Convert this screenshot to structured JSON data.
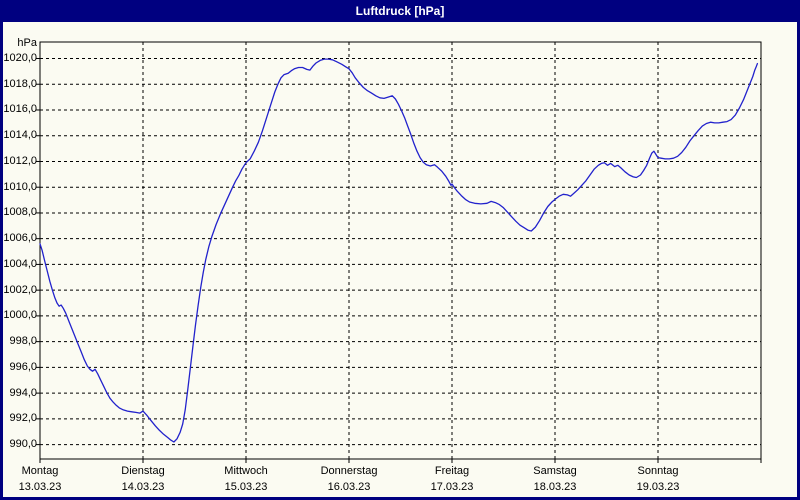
{
  "window": {
    "title": "Luftdruck [hPa]"
  },
  "colors": {
    "titlebar": "#000080",
    "title_text": "#ffffff",
    "window_border": "#000080",
    "background": "#fbfbf2",
    "axis": "#000000",
    "grid": "#000000",
    "line": "#2222cc"
  },
  "chart_data": {
    "type": "line",
    "title": "Luftdruck [hPa]",
    "xlabel": "",
    "ylabel": "hPa",
    "unit": "hPa",
    "grid": "dashed",
    "legend": "none",
    "ylim": [
      988.9,
      1021.3
    ],
    "xlim_days": [
      0,
      7
    ],
    "y_ticks": [
      990,
      992,
      994,
      996,
      998,
      1000,
      1002,
      1004,
      1006,
      1008,
      1010,
      1012,
      1014,
      1016,
      1018,
      1020
    ],
    "y_tick_labels": [
      "990,0",
      "992,0",
      "994,0",
      "996,0",
      "998,0",
      "1000,0",
      "1002,0",
      "1004,0",
      "1006,0",
      "1008,0",
      "1010,0",
      "1012,0",
      "1014,0",
      "1016,0",
      "1018,0",
      "1020,0"
    ],
    "x_ticks": [
      {
        "day": "Montag",
        "date": "13.03.23"
      },
      {
        "day": "Dienstag",
        "date": "14.03.23"
      },
      {
        "day": "Mittwoch",
        "date": "15.03.23"
      },
      {
        "day": "Donnerstag",
        "date": "16.03.23"
      },
      {
        "day": "Freitag",
        "date": "17.03.23"
      },
      {
        "day": "Samstag",
        "date": "18.03.23"
      },
      {
        "day": "Sonntag",
        "date": "19.03.23"
      }
    ],
    "series": [
      {
        "name": "Luftdruck",
        "color": "#2222cc",
        "points_day_hpa": [
          [
            0.0,
            1005.6
          ],
          [
            0.02,
            1005.1
          ],
          [
            0.045,
            1004.3
          ],
          [
            0.07,
            1003.5
          ],
          [
            0.095,
            1002.7
          ],
          [
            0.12,
            1002.0
          ],
          [
            0.145,
            1001.4
          ],
          [
            0.165,
            1001.0
          ],
          [
            0.185,
            1000.75
          ],
          [
            0.205,
            1000.85
          ],
          [
            0.225,
            1000.6
          ],
          [
            0.25,
            1000.2
          ],
          [
            0.28,
            999.6
          ],
          [
            0.31,
            999.0
          ],
          [
            0.34,
            998.4
          ],
          [
            0.37,
            997.8
          ],
          [
            0.4,
            997.2
          ],
          [
            0.43,
            996.6
          ],
          [
            0.46,
            996.1
          ],
          [
            0.485,
            995.85
          ],
          [
            0.51,
            995.7
          ],
          [
            0.535,
            995.85
          ],
          [
            0.56,
            995.5
          ],
          [
            0.59,
            995.0
          ],
          [
            0.62,
            994.5
          ],
          [
            0.65,
            994.0
          ],
          [
            0.68,
            993.6
          ],
          [
            0.71,
            993.3
          ],
          [
            0.74,
            993.05
          ],
          [
            0.77,
            992.85
          ],
          [
            0.81,
            992.7
          ],
          [
            0.85,
            992.6
          ],
          [
            0.89,
            992.55
          ],
          [
            0.93,
            992.5
          ],
          [
            0.97,
            992.45
          ],
          [
            1.0,
            992.6
          ],
          [
            1.04,
            992.25
          ],
          [
            1.08,
            991.85
          ],
          [
            1.12,
            991.45
          ],
          [
            1.16,
            991.1
          ],
          [
            1.2,
            990.8
          ],
          [
            1.24,
            990.55
          ],
          [
            1.27,
            990.35
          ],
          [
            1.3,
            990.2
          ],
          [
            1.33,
            990.45
          ],
          [
            1.36,
            990.95
          ],
          [
            1.385,
            991.6
          ],
          [
            1.41,
            992.7
          ],
          [
            1.435,
            994.3
          ],
          [
            1.46,
            996.0
          ],
          [
            1.485,
            997.7
          ],
          [
            1.51,
            999.3
          ],
          [
            1.535,
            1000.8
          ],
          [
            1.56,
            1002.2
          ],
          [
            1.585,
            1003.4
          ],
          [
            1.61,
            1004.4
          ],
          [
            1.64,
            1005.4
          ],
          [
            1.67,
            1006.2
          ],
          [
            1.71,
            1007.1
          ],
          [
            1.75,
            1007.9
          ],
          [
            1.79,
            1008.6
          ],
          [
            1.83,
            1009.3
          ],
          [
            1.87,
            1010.0
          ],
          [
            1.9,
            1010.5
          ],
          [
            1.93,
            1010.9
          ],
          [
            1.96,
            1011.4
          ],
          [
            2.0,
            1011.9
          ],
          [
            2.04,
            1012.2
          ],
          [
            2.08,
            1012.8
          ],
          [
            2.12,
            1013.5
          ],
          [
            2.16,
            1014.4
          ],
          [
            2.2,
            1015.4
          ],
          [
            2.24,
            1016.4
          ],
          [
            2.28,
            1017.4
          ],
          [
            2.31,
            1018.0
          ],
          [
            2.34,
            1018.5
          ],
          [
            2.37,
            1018.75
          ],
          [
            2.41,
            1018.85
          ],
          [
            2.44,
            1019.05
          ],
          [
            2.47,
            1019.2
          ],
          [
            2.51,
            1019.3
          ],
          [
            2.55,
            1019.3
          ],
          [
            2.59,
            1019.15
          ],
          [
            2.62,
            1019.1
          ],
          [
            2.65,
            1019.4
          ],
          [
            2.68,
            1019.65
          ],
          [
            2.72,
            1019.85
          ],
          [
            2.76,
            1019.95
          ],
          [
            2.8,
            1019.95
          ],
          [
            2.84,
            1019.9
          ],
          [
            2.88,
            1019.75
          ],
          [
            2.93,
            1019.55
          ],
          [
            2.97,
            1019.35
          ],
          [
            3.0,
            1019.2
          ],
          [
            3.03,
            1018.9
          ],
          [
            3.06,
            1018.5
          ],
          [
            3.1,
            1018.1
          ],
          [
            3.14,
            1017.75
          ],
          [
            3.18,
            1017.5
          ],
          [
            3.22,
            1017.3
          ],
          [
            3.26,
            1017.1
          ],
          [
            3.3,
            1016.95
          ],
          [
            3.34,
            1016.9
          ],
          [
            3.38,
            1017.0
          ],
          [
            3.42,
            1017.1
          ],
          [
            3.45,
            1016.85
          ],
          [
            3.48,
            1016.45
          ],
          [
            3.51,
            1015.95
          ],
          [
            3.54,
            1015.4
          ],
          [
            3.57,
            1014.75
          ],
          [
            3.6,
            1014.1
          ],
          [
            3.63,
            1013.4
          ],
          [
            3.66,
            1012.8
          ],
          [
            3.69,
            1012.3
          ],
          [
            3.72,
            1011.95
          ],
          [
            3.75,
            1011.75
          ],
          [
            3.79,
            1011.65
          ],
          [
            3.83,
            1011.75
          ],
          [
            3.86,
            1011.55
          ],
          [
            3.9,
            1011.25
          ],
          [
            3.94,
            1010.85
          ],
          [
            3.97,
            1010.45
          ],
          [
            3.99,
            1010.15
          ],
          [
            4.0,
            1010.25
          ],
          [
            4.02,
            1010.0
          ],
          [
            4.05,
            1009.7
          ],
          [
            4.09,
            1009.35
          ],
          [
            4.13,
            1009.05
          ],
          [
            4.17,
            1008.85
          ],
          [
            4.22,
            1008.75
          ],
          [
            4.28,
            1008.7
          ],
          [
            4.34,
            1008.75
          ],
          [
            4.38,
            1008.9
          ],
          [
            4.42,
            1008.8
          ],
          [
            4.46,
            1008.65
          ],
          [
            4.5,
            1008.4
          ],
          [
            4.54,
            1008.05
          ],
          [
            4.58,
            1007.7
          ],
          [
            4.62,
            1007.35
          ],
          [
            4.66,
            1007.05
          ],
          [
            4.7,
            1006.85
          ],
          [
            4.74,
            1006.65
          ],
          [
            4.77,
            1006.6
          ],
          [
            4.81,
            1006.9
          ],
          [
            4.85,
            1007.4
          ],
          [
            4.89,
            1008.0
          ],
          [
            4.93,
            1008.5
          ],
          [
            4.97,
            1008.85
          ],
          [
            5.0,
            1009.05
          ],
          [
            5.04,
            1009.3
          ],
          [
            5.08,
            1009.45
          ],
          [
            5.12,
            1009.4
          ],
          [
            5.15,
            1009.3
          ],
          [
            5.18,
            1009.5
          ],
          [
            5.22,
            1009.8
          ],
          [
            5.26,
            1010.15
          ],
          [
            5.3,
            1010.5
          ],
          [
            5.34,
            1010.95
          ],
          [
            5.38,
            1011.4
          ],
          [
            5.42,
            1011.7
          ],
          [
            5.45,
            1011.85
          ],
          [
            5.48,
            1011.9
          ],
          [
            5.51,
            1011.7
          ],
          [
            5.54,
            1011.85
          ],
          [
            5.58,
            1011.6
          ],
          [
            5.61,
            1011.7
          ],
          [
            5.64,
            1011.5
          ],
          [
            5.68,
            1011.2
          ],
          [
            5.72,
            1010.95
          ],
          [
            5.76,
            1010.8
          ],
          [
            5.79,
            1010.75
          ],
          [
            5.83,
            1010.95
          ],
          [
            5.86,
            1011.3
          ],
          [
            5.89,
            1011.7
          ],
          [
            5.92,
            1012.3
          ],
          [
            5.94,
            1012.65
          ],
          [
            5.96,
            1012.8
          ],
          [
            5.98,
            1012.55
          ],
          [
            6.0,
            1012.3
          ],
          [
            6.03,
            1012.25
          ],
          [
            6.07,
            1012.2
          ],
          [
            6.11,
            1012.2
          ],
          [
            6.15,
            1012.25
          ],
          [
            6.19,
            1012.4
          ],
          [
            6.23,
            1012.7
          ],
          [
            6.27,
            1013.1
          ],
          [
            6.31,
            1013.6
          ],
          [
            6.35,
            1014.0
          ],
          [
            6.39,
            1014.4
          ],
          [
            6.43,
            1014.75
          ],
          [
            6.47,
            1014.95
          ],
          [
            6.51,
            1015.05
          ],
          [
            6.55,
            1015.0
          ],
          [
            6.59,
            1015.0
          ],
          [
            6.63,
            1015.05
          ],
          [
            6.67,
            1015.1
          ],
          [
            6.71,
            1015.25
          ],
          [
            6.75,
            1015.6
          ],
          [
            6.79,
            1016.15
          ],
          [
            6.83,
            1016.8
          ],
          [
            6.86,
            1017.4
          ],
          [
            6.89,
            1018.0
          ],
          [
            6.92,
            1018.6
          ],
          [
            6.94,
            1019.1
          ],
          [
            6.955,
            1019.4
          ],
          [
            6.965,
            1019.6
          ]
        ]
      }
    ]
  }
}
